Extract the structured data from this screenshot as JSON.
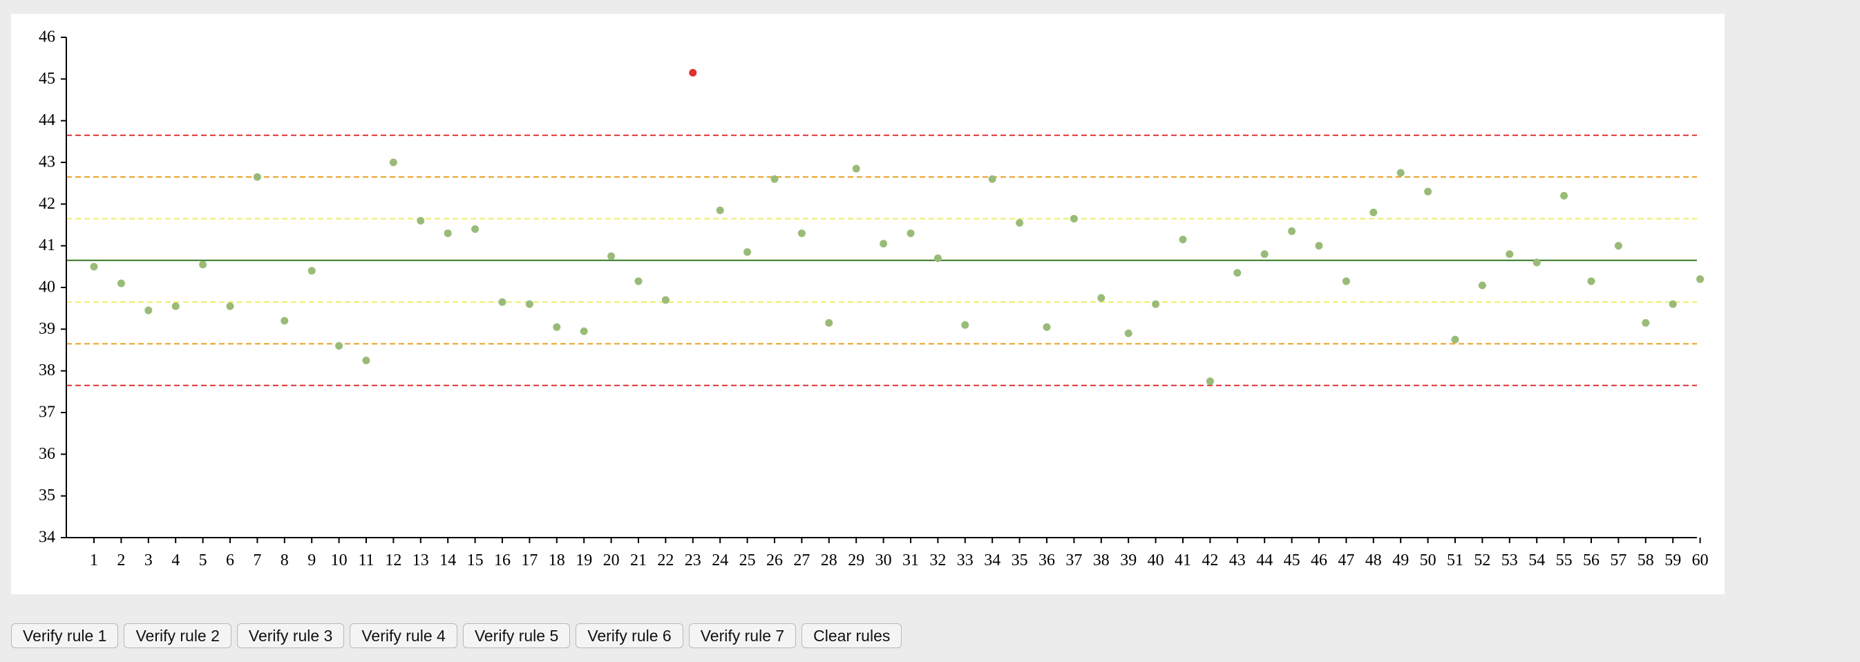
{
  "toolbar": {
    "buttons": [
      "Verify rule 1",
      "Verify rule 2",
      "Verify rule 3",
      "Verify rule 4",
      "Verify rule 5",
      "Verify rule 6",
      "Verify rule 7",
      "Clear rules"
    ]
  },
  "chart_data": {
    "type": "scatter",
    "title": "",
    "xlabel": "",
    "ylabel": "",
    "x": [
      1,
      2,
      3,
      4,
      5,
      6,
      7,
      8,
      9,
      10,
      11,
      12,
      13,
      14,
      15,
      16,
      17,
      18,
      19,
      20,
      21,
      22,
      23,
      24,
      25,
      26,
      27,
      28,
      29,
      30,
      31,
      32,
      33,
      34,
      35,
      36,
      37,
      38,
      39,
      40,
      41,
      42,
      43,
      44,
      45,
      46,
      47,
      48,
      49,
      50,
      51,
      52,
      53,
      54,
      55,
      56,
      57,
      58,
      59,
      60
    ],
    "values": [
      40.5,
      40.1,
      39.45,
      39.55,
      40.55,
      39.55,
      42.65,
      39.2,
      40.4,
      38.6,
      38.25,
      43.0,
      41.6,
      41.3,
      41.4,
      39.65,
      39.6,
      39.05,
      38.95,
      40.75,
      40.15,
      39.7,
      45.15,
      41.85,
      40.85,
      42.6,
      41.3,
      39.15,
      42.85,
      41.05,
      41.3,
      40.7,
      39.1,
      42.6,
      41.55,
      39.05,
      41.65,
      39.75,
      38.9,
      39.6,
      41.15,
      37.75,
      40.35,
      40.8,
      41.35,
      41.0,
      40.15,
      41.8,
      42.75,
      42.3,
      38.75,
      40.05,
      40.8,
      40.6,
      42.2,
      40.15,
      41.0,
      39.15,
      39.6,
      40.2
    ],
    "point_colors": [
      "#99bb77",
      "#99bb77",
      "#99bb77",
      "#99bb77",
      "#99bb77",
      "#99bb77",
      "#99bb77",
      "#99bb77",
      "#99bb77",
      "#99bb77",
      "#99bb77",
      "#99bb77",
      "#99bb77",
      "#99bb77",
      "#99bb77",
      "#99bb77",
      "#99bb77",
      "#99bb77",
      "#99bb77",
      "#99bb77",
      "#99bb77",
      "#99bb77",
      "#e03030",
      "#99bb77",
      "#99bb77",
      "#99bb77",
      "#99bb77",
      "#99bb77",
      "#99bb77",
      "#99bb77",
      "#99bb77",
      "#99bb77",
      "#99bb77",
      "#99bb77",
      "#99bb77",
      "#99bb77",
      "#99bb77",
      "#99bb77",
      "#99bb77",
      "#99bb77",
      "#99bb77",
      "#99bb77",
      "#99bb77",
      "#99bb77",
      "#99bb77",
      "#99bb77",
      "#99bb77",
      "#99bb77",
      "#99bb77",
      "#99bb77",
      "#99bb77",
      "#99bb77",
      "#99bb77",
      "#99bb77",
      "#99bb77",
      "#99bb77",
      "#99bb77",
      "#99bb77",
      "#99bb77",
      "#99bb77"
    ],
    "ylim": [
      34,
      46
    ],
    "yticks": [
      34,
      35,
      36,
      37,
      38,
      39,
      40,
      41,
      42,
      43,
      44,
      45,
      46
    ],
    "reference_lines": [
      {
        "value": 43.65,
        "color": "#e03030",
        "style": "dashed"
      },
      {
        "value": 42.65,
        "color": "#e8a020",
        "style": "dashed"
      },
      {
        "value": 41.65,
        "color": "#eeee66",
        "style": "dashed"
      },
      {
        "value": 40.65,
        "color": "#337722",
        "style": "solid"
      },
      {
        "value": 39.65,
        "color": "#eeee66",
        "style": "dashed"
      },
      {
        "value": 38.65,
        "color": "#e8a020",
        "style": "dashed"
      },
      {
        "value": 37.65,
        "color": "#e03030",
        "style": "dashed"
      }
    ],
    "grid": false,
    "legend": "none"
  }
}
